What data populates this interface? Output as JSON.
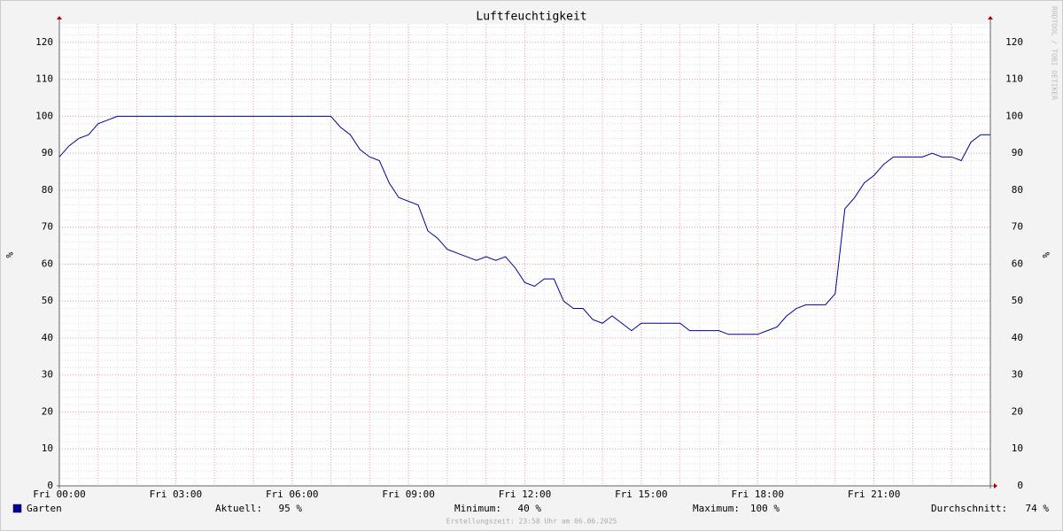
{
  "chart_data": {
    "type": "line",
    "title": "Luftfeuchtigkeit",
    "y_label": "%",
    "watermark": "RRDTOOL / TOBI OETIKER",
    "footer": "Erstellungszeit: 23:58 Uhr am 06.06.2025",
    "xlim": [
      0,
      24
    ],
    "xticks": [
      {
        "value": 0,
        "label": "Fri 00:00"
      },
      {
        "value": 3,
        "label": "Fri 03:00"
      },
      {
        "value": 6,
        "label": "Fri 06:00"
      },
      {
        "value": 9,
        "label": "Fri 09:00"
      },
      {
        "value": 12,
        "label": "Fri 12:00"
      },
      {
        "value": 15,
        "label": "Fri 15:00"
      },
      {
        "value": 18,
        "label": "Fri 18:00"
      },
      {
        "value": 21,
        "label": "Fri 21:00"
      }
    ],
    "ylim": [
      0,
      125
    ],
    "yticks": [
      0,
      10,
      20,
      30,
      40,
      50,
      60,
      70,
      80,
      90,
      100,
      110,
      120
    ],
    "grid": true,
    "x": [
      0,
      0.25,
      0.5,
      0.75,
      1,
      1.25,
      1.5,
      7,
      7.25,
      7.5,
      7.75,
      8,
      8.25,
      8.5,
      8.75,
      9,
      9.25,
      9.5,
      9.75,
      10,
      10.25,
      10.5,
      10.75,
      11,
      11.25,
      11.5,
      11.75,
      12,
      12.25,
      12.5,
      12.75,
      13,
      13.25,
      13.5,
      13.75,
      14,
      14.25,
      14.5,
      14.75,
      15,
      15.25,
      15.5,
      15.75,
      16,
      16.25,
      16.5,
      16.75,
      17,
      17.25,
      17.5,
      17.75,
      18,
      18.25,
      18.5,
      18.75,
      19,
      19.25,
      19.5,
      19.75,
      20,
      20.25,
      20.5,
      20.75,
      21,
      21.25,
      21.5,
      21.75,
      22,
      22.25,
      22.5,
      22.75,
      23,
      23.25,
      23.5,
      23.75,
      24
    ],
    "series": [
      {
        "name": "Garten",
        "color": "#000099",
        "values": [
          89,
          92,
          94,
          95,
          98,
          99,
          100,
          100,
          97,
          95,
          91,
          89,
          88,
          82,
          78,
          77,
          76,
          69,
          67,
          64,
          63,
          62,
          61,
          62,
          61,
          62,
          59,
          55,
          54,
          56,
          56,
          50,
          48,
          48,
          45,
          44,
          46,
          44,
          42,
          44,
          44,
          44,
          44,
          44,
          42,
          42,
          42,
          42,
          41,
          41,
          41,
          41,
          42,
          43,
          46,
          48,
          49,
          49,
          49,
          52,
          75,
          78,
          82,
          84,
          87,
          89,
          89,
          89,
          89,
          90,
          89,
          89,
          88,
          93,
          95,
          95
        ]
      }
    ],
    "stats": [
      {
        "label": "Aktuell:",
        "value": "95 %"
      },
      {
        "label": "Minimum:",
        "value": "40 %"
      },
      {
        "label": "Maximum:",
        "value": "100 %"
      },
      {
        "label": "Durchschnitt:",
        "value": "74 %"
      }
    ]
  }
}
